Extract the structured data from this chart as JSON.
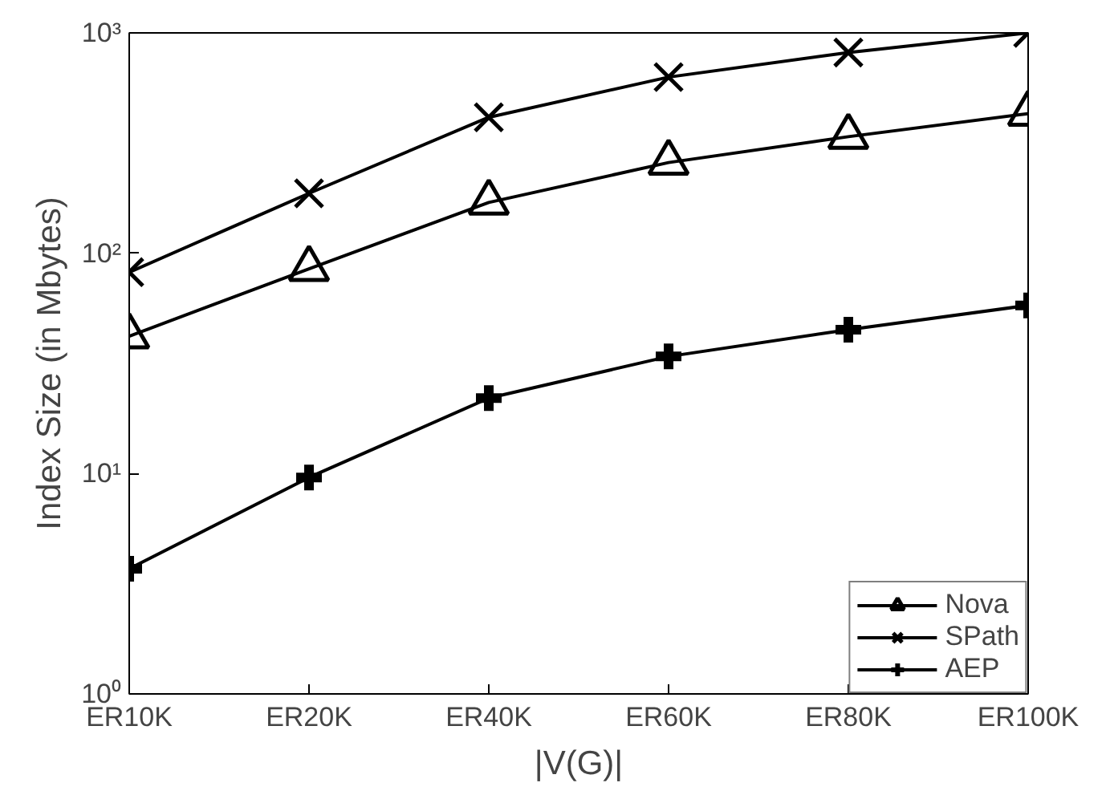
{
  "chart_data": {
    "type": "line",
    "xlabel": "|V(G)|",
    "ylabel": "Index Size (in Mbytes)",
    "categories": [
      "ER10K",
      "ER20K",
      "ER40K",
      "ER60K",
      "ER80K",
      "ER100K"
    ],
    "series": [
      {
        "name": "Nova",
        "color": "#000000",
        "marker": "triangle",
        "values": [
          42,
          85,
          170,
          258,
          338,
          430
        ]
      },
      {
        "name": "SPath",
        "color": "#000000",
        "marker": "x",
        "values": [
          82,
          187,
          414,
          630,
          815,
          1000
        ]
      },
      {
        "name": "AEP",
        "color": "#000000",
        "marker": "cross",
        "values": [
          3.7,
          9.6,
          22,
          34,
          45,
          58
        ]
      }
    ],
    "log": "y",
    "ylim": [
      1,
      1000
    ],
    "yticks": [
      {
        "value": 1,
        "label": "10⁰"
      },
      {
        "value": 10,
        "label": "10¹"
      },
      {
        "value": 100,
        "label": "10²"
      },
      {
        "value": 1000,
        "label": "10³"
      }
    ],
    "grid": false,
    "legend": "bottom right",
    "line_style": "solid"
  }
}
